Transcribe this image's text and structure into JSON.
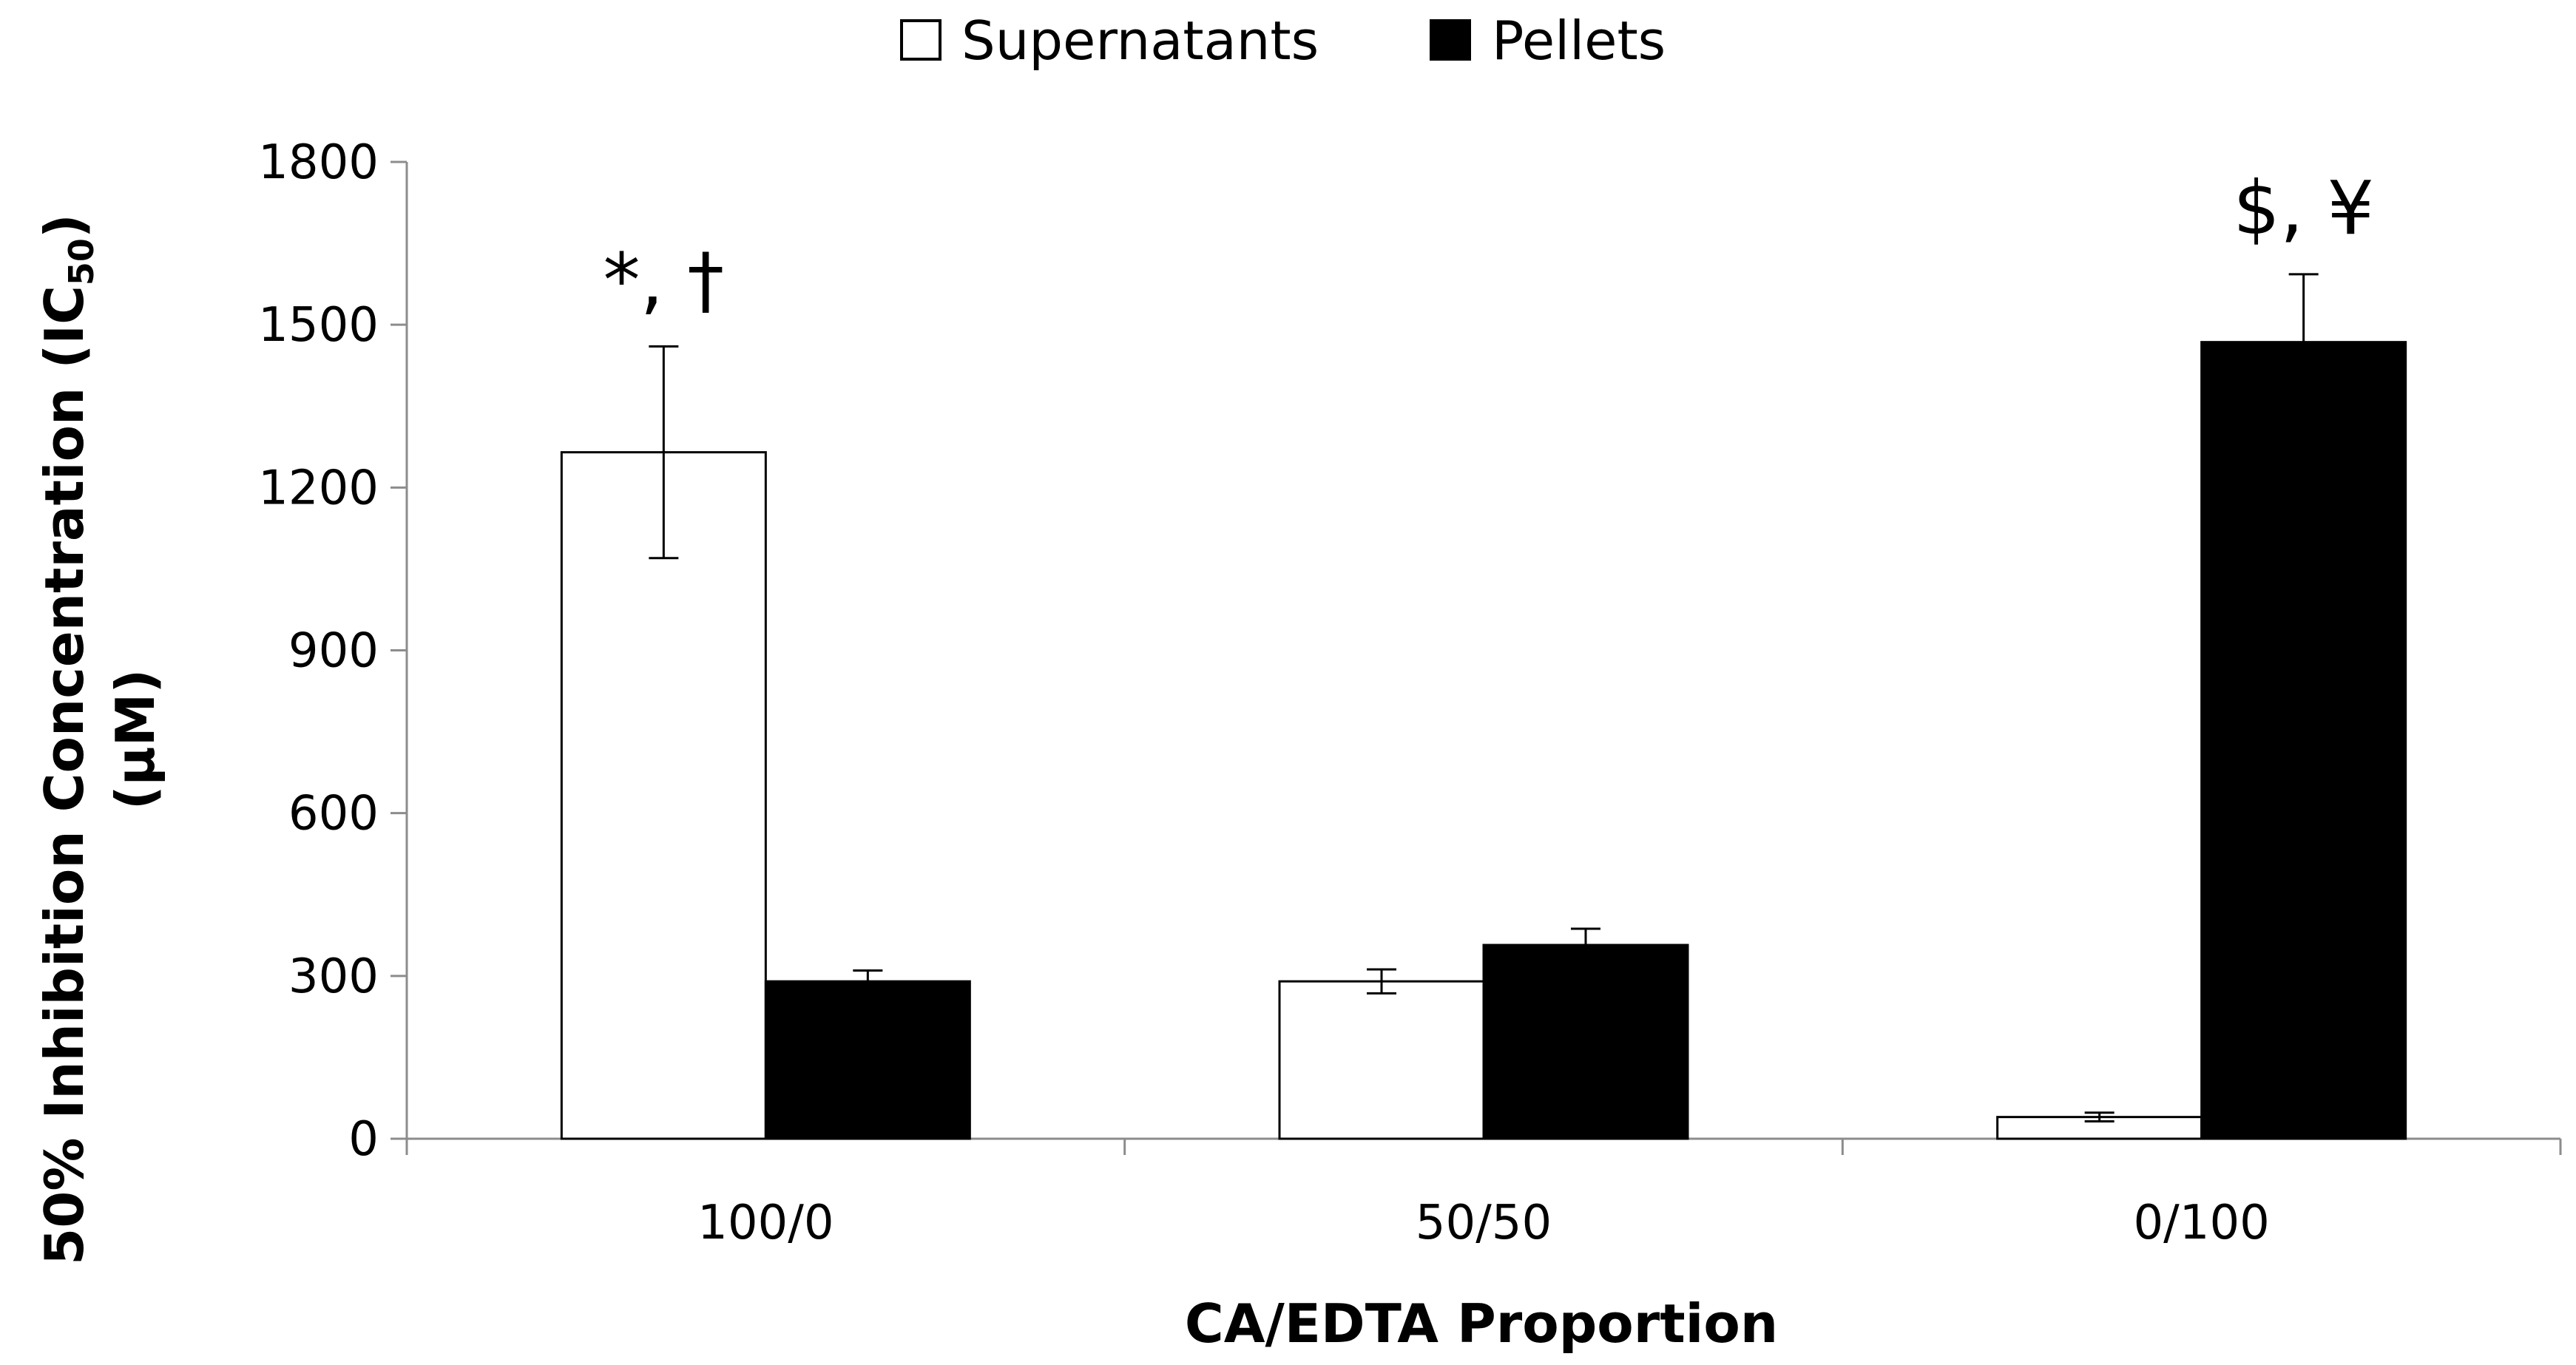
{
  "chart_data": {
    "type": "bar",
    "title": "",
    "xlabel": "CA/EDTA Proportion",
    "ylabel": {
      "line1_prefix": "50% Inhibition Concentration (IC",
      "line1_subscript": "50",
      "line1_suffix": ")",
      "line2": "(µM)"
    },
    "ylim": [
      0,
      1800
    ],
    "yticks": [
      0,
      300,
      600,
      900,
      1200,
      1500,
      1800
    ],
    "ytick_labels": [
      "0",
      "300",
      "600",
      "900",
      "1200",
      "1500",
      "1800"
    ],
    "categories": [
      "100/0",
      "50/50",
      "0/100"
    ],
    "series": [
      {
        "name": "Supernatants",
        "values": [
          1265,
          290,
          40
        ],
        "errors": [
          195,
          22,
          8
        ],
        "fill": "#ffffff",
        "stroke": "#000000"
      },
      {
        "name": "Pellets",
        "values": [
          290,
          357,
          1468
        ],
        "errors": [
          20,
          30,
          125
        ],
        "fill": "#000000",
        "stroke": "#000000"
      }
    ],
    "annotations": [
      {
        "category": "100/0",
        "text": "*, †"
      },
      {
        "category": "0/100",
        "text": "$, ¥"
      }
    ],
    "legend_position": "top-center",
    "grid": false
  }
}
